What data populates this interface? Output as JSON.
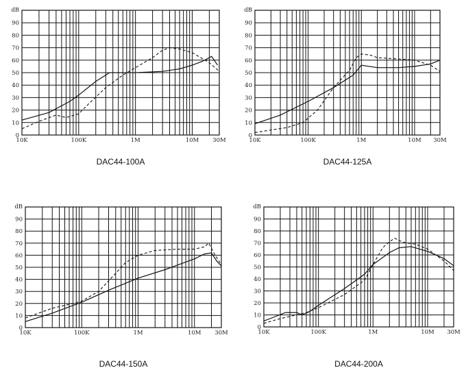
{
  "chart_data": [
    {
      "type": "line",
      "title": "DAC44-100A",
      "ylabel": "dB",
      "ylim": [
        0,
        100
      ],
      "xlim": [
        10000,
        30000000
      ],
      "xscale": "log",
      "yticks": [
        "0",
        "10",
        "20",
        "30",
        "40",
        "50",
        "60",
        "70",
        "80",
        "90"
      ],
      "xticks": [
        {
          "v": 10000,
          "label": "10K"
        },
        {
          "v": 100000,
          "label": "100K"
        },
        {
          "v": 1000000,
          "label": "1M"
        },
        {
          "v": 10000000,
          "label": "10M"
        },
        {
          "v": 30000000,
          "label": "30M"
        }
      ],
      "series": [
        {
          "style": "solid",
          "x": [
            10000,
            30000,
            70000,
            100000,
            200000,
            350000,
            1000000,
            3000000,
            6000000,
            10000000,
            15000000,
            22000000,
            28000000
          ],
          "y": [
            12,
            18,
            27,
            32,
            43,
            50,
            50,
            51,
            53,
            56,
            59,
            63,
            56
          ]
        },
        {
          "style": "dashed",
          "x": [
            10000,
            20000,
            40000,
            60000,
            100000,
            150000,
            300000,
            600000,
            1000000,
            2000000,
            3000000,
            4000000,
            6000000,
            10000000,
            20000000,
            30000000
          ],
          "y": [
            5,
            11,
            16,
            14,
            17,
            25,
            38,
            48,
            54,
            62,
            68,
            70,
            69,
            66,
            58,
            51
          ]
        }
      ]
    },
    {
      "type": "line",
      "title": "DAC44-125A",
      "ylabel": "dB",
      "ylim": [
        0,
        100
      ],
      "xlim": [
        10000,
        30000000
      ],
      "xscale": "log",
      "yticks": [
        "0",
        "10",
        "20",
        "30",
        "40",
        "50",
        "60",
        "70",
        "80",
        "90"
      ],
      "xticks": [
        {
          "v": 10000,
          "label": "10K"
        },
        {
          "v": 100000,
          "label": "100K"
        },
        {
          "v": 1000000,
          "label": "1M"
        },
        {
          "v": 10000000,
          "label": "10M"
        },
        {
          "v": 30000000,
          "label": "30M"
        }
      ],
      "series": [
        {
          "style": "solid",
          "x": [
            10000,
            30000,
            100000,
            300000,
            700000,
            1000000,
            2000000,
            5000000,
            10000000,
            20000000,
            30000000
          ],
          "y": [
            9,
            16,
            27,
            38,
            48,
            56,
            54,
            54,
            55,
            57,
            60
          ]
        },
        {
          "style": "dashed",
          "x": [
            10000,
            20000,
            40000,
            80000,
            150000,
            300000,
            600000,
            800000,
            1000000,
            1500000,
            2000000,
            5000000,
            10000000,
            20000000,
            30000000
          ],
          "y": [
            2,
            4,
            6,
            10,
            20,
            38,
            52,
            62,
            65,
            64,
            62,
            61,
            60,
            56,
            51
          ]
        }
      ]
    },
    {
      "type": "line",
      "title": "DAC44-150A",
      "ylabel": "dB",
      "ylim": [
        0,
        100
      ],
      "xlim": [
        10000,
        30000000
      ],
      "xscale": "log",
      "yticks": [
        "0",
        "10",
        "20",
        "30",
        "40",
        "50",
        "60",
        "70",
        "80",
        "90"
      ],
      "xticks": [
        {
          "v": 10000,
          "label": "10K"
        },
        {
          "v": 100000,
          "label": "100K"
        },
        {
          "v": 1000000,
          "label": "1M"
        },
        {
          "v": 10000000,
          "label": "10M"
        },
        {
          "v": 30000000,
          "label": "30M"
        }
      ],
      "series": [
        {
          "style": "solid",
          "x": [
            10000,
            30000,
            100000,
            300000,
            1000000,
            3000000,
            10000000,
            15000000,
            20000000,
            25000000,
            30000000
          ],
          "y": [
            5,
            12,
            21,
            31,
            41,
            48,
            57,
            61,
            62,
            55,
            51
          ]
        },
        {
          "style": "dashed",
          "x": [
            10000,
            30000,
            70000,
            100000,
            200000,
            400000,
            600000,
            1000000,
            2000000,
            5000000,
            10000000,
            15000000,
            18000000,
            22000000,
            30000000
          ],
          "y": [
            8,
            16,
            20,
            22,
            30,
            45,
            54,
            60,
            64,
            65,
            65,
            67,
            70,
            62,
            52
          ]
        }
      ]
    },
    {
      "type": "line",
      "title": "DAC44-200A",
      "ylabel": "dB",
      "ylim": [
        0,
        100
      ],
      "xlim": [
        10000,
        30000000
      ],
      "xscale": "log",
      "yticks": [
        "0",
        "10",
        "20",
        "30",
        "40",
        "50",
        "60",
        "70",
        "80",
        "90"
      ],
      "xticks": [
        {
          "v": 10000,
          "label": "10K"
        },
        {
          "v": 100000,
          "label": "100K"
        },
        {
          "v": 1000000,
          "label": "1M"
        },
        {
          "v": 10000000,
          "label": "10M"
        },
        {
          "v": 30000000,
          "label": "30M"
        }
      ],
      "series": [
        {
          "style": "solid",
          "x": [
            10000,
            15000,
            25000,
            40000,
            50000,
            70000,
            100000,
            300000,
            700000,
            1000000,
            2000000,
            3000000,
            5000000,
            10000000,
            20000000,
            30000000
          ],
          "y": [
            5,
            8,
            12,
            12,
            10,
            13,
            18,
            32,
            44,
            52,
            62,
            66,
            67,
            63,
            57,
            51
          ]
        },
        {
          "style": "dashed",
          "x": [
            10000,
            20000,
            40000,
            60000,
            100000,
            300000,
            700000,
            1000000,
            1500000,
            2000000,
            2500000,
            3000000,
            4000000,
            6000000,
            10000000,
            20000000,
            30000000
          ],
          "y": [
            3,
            7,
            10,
            12,
            16,
            27,
            39,
            52,
            66,
            71,
            74,
            72,
            70,
            69,
            65,
            55,
            47
          ]
        }
      ]
    }
  ]
}
